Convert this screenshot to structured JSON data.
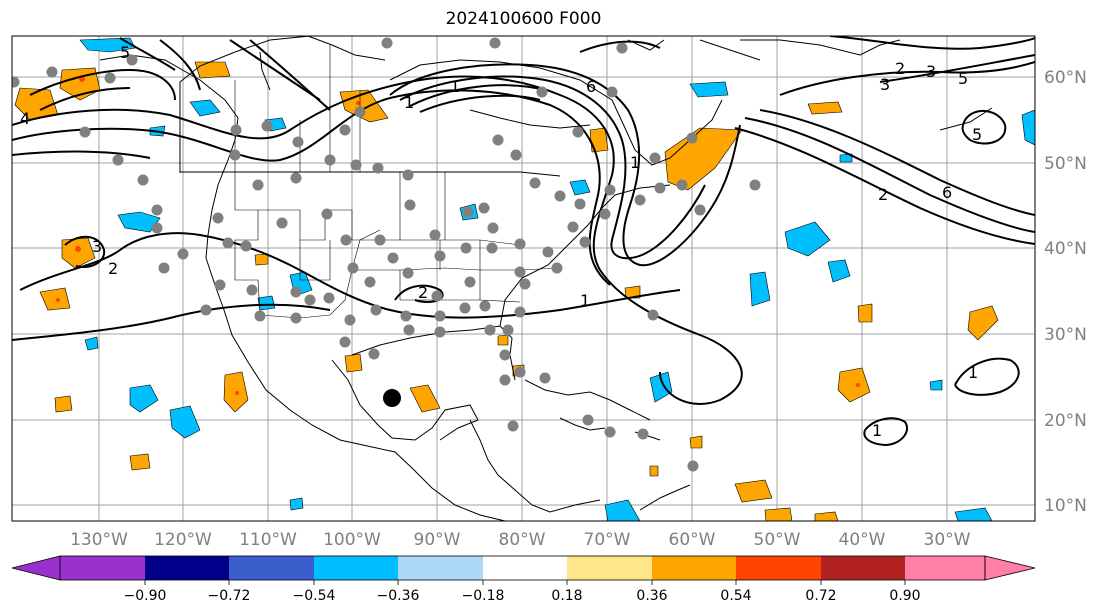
{
  "map": {
    "title": "2024100600 F000",
    "lon_labels": [
      "130°W",
      "120°W",
      "110°W",
      "100°W",
      "90°W",
      "80°W",
      "70°W",
      "60°W",
      "50°W",
      "40°W",
      "30°W"
    ],
    "lat_labels": [
      "60°N",
      "50°N",
      "40°N",
      "30°N",
      "20°N",
      "10°N"
    ],
    "contour_labels": [
      "1",
      "2",
      "3",
      "4",
      "5",
      "6",
      "1",
      "2",
      "3",
      "5",
      "6",
      "2",
      "3",
      "5",
      "1",
      "2",
      "1",
      "1",
      "1"
    ],
    "shading_colors": {
      "negative_strong": "#00bfff",
      "negative_light": "#add8f7",
      "positive_light": "#ffe68a",
      "positive": "#ffa500",
      "positive_strong": "#ff4500"
    },
    "marker_dot_color": "#808080",
    "center_marker_color": "#000000"
  },
  "colorbar": {
    "tick_labels": [
      "−0.90",
      "−0.72",
      "−0.54",
      "−0.36",
      "−0.18",
      "0.18",
      "0.36",
      "0.54",
      "0.72",
      "0.90"
    ],
    "colors": [
      "#9932cc",
      "#00008b",
      "#3a5fcd",
      "#00bfff",
      "#add8f7",
      "#ffffff",
      "#ffe68a",
      "#ffa500",
      "#ff4500",
      "#b22222",
      "#ff7fa6"
    ]
  }
}
